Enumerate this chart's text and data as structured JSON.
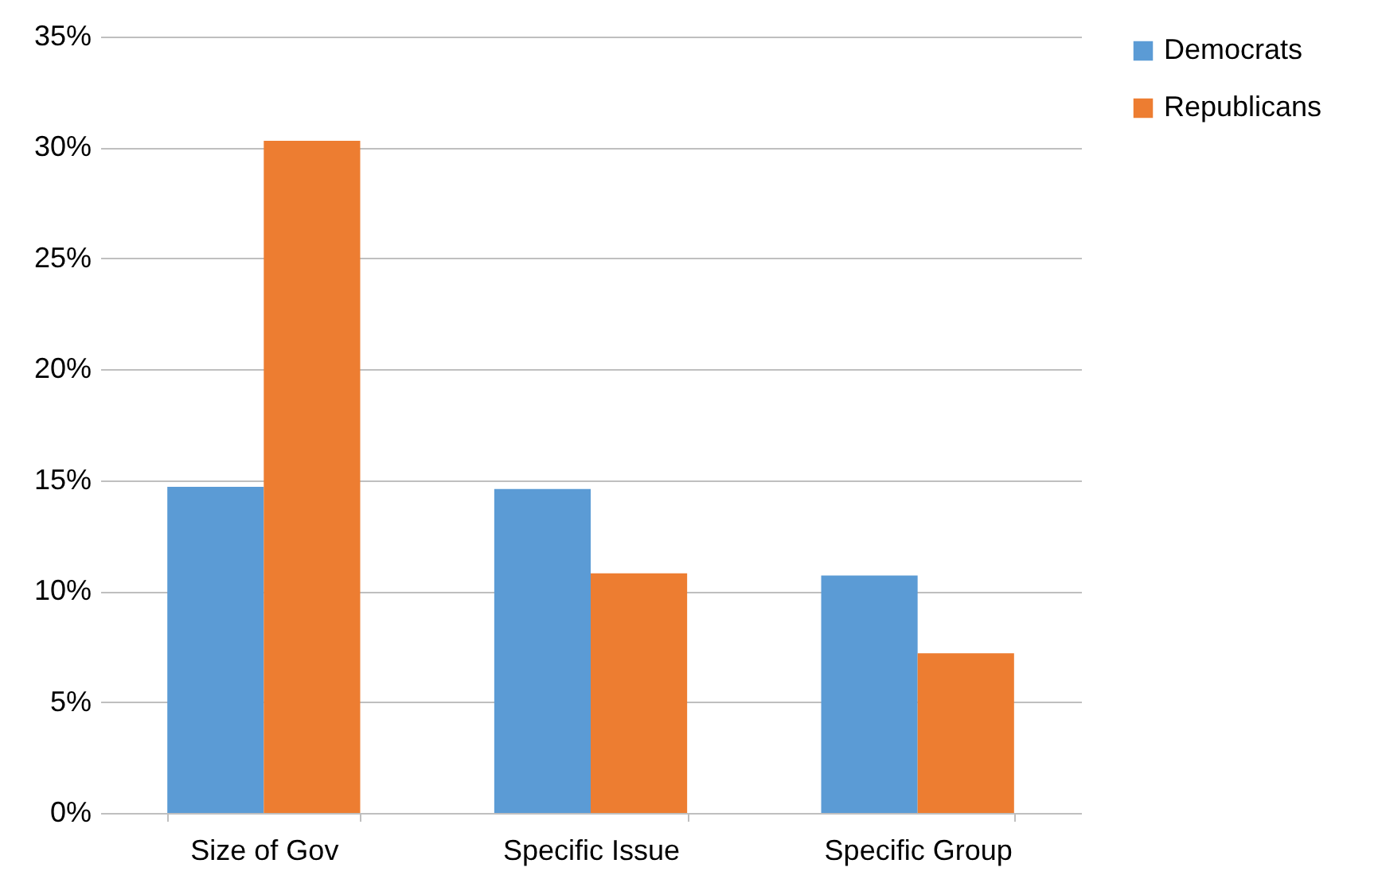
{
  "chart_data": {
    "type": "bar",
    "categories": [
      "Size of Gov",
      "Specific Issue",
      "Specific Group"
    ],
    "series": [
      {
        "name": "Democrats",
        "color": "#5b9bd5",
        "values": [
          14.7,
          14.6,
          10.7
        ]
      },
      {
        "name": "Republicans",
        "color": "#ed7d31",
        "values": [
          30.3,
          10.8,
          7.2
        ]
      }
    ],
    "ylim": [
      0,
      35
    ],
    "yticks": [
      {
        "value": 0,
        "label": "0%"
      },
      {
        "value": 5,
        "label": "5%"
      },
      {
        "value": 10,
        "label": "10%"
      },
      {
        "value": 15,
        "label": "15%"
      },
      {
        "value": 20,
        "label": "20%"
      },
      {
        "value": 25,
        "label": "25%"
      },
      {
        "value": 30,
        "label": "30%"
      },
      {
        "value": 35,
        "label": "35%"
      }
    ],
    "grid": "y",
    "legend": "right"
  }
}
